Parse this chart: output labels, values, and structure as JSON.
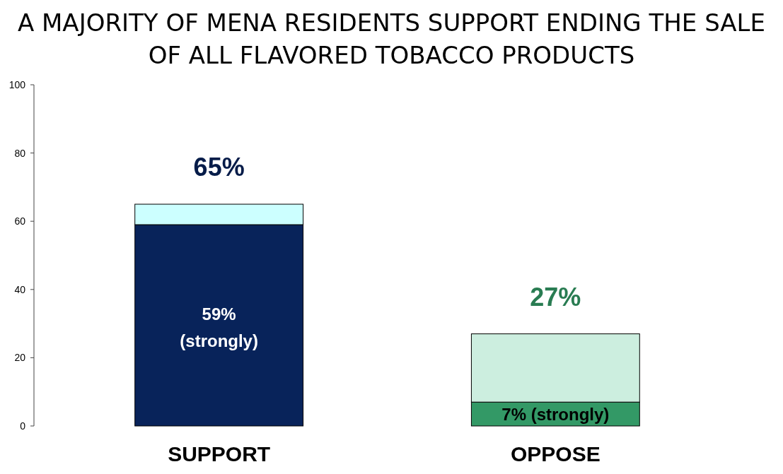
{
  "chart_data": {
    "type": "bar",
    "title": "A MAJORITY OF MENA RESIDENTS SUPPORT ENDING THE SALE OF ALL FLAVORED TOBACCO PRODUCTS",
    "categories": [
      "SUPPORT",
      "OPPOSE"
    ],
    "stacked": true,
    "series": [
      {
        "colors": [
          "#08235a",
          "#339966"
        ],
        "values": [
          59,
          7
        ],
        "value_labels": [
          "59% (strongly)",
          "7% (strongly)"
        ]
      },
      {
        "colors": [
          "#ccffff",
          "#cceedf"
        ],
        "values": [
          6,
          20
        ]
      }
    ],
    "totals": [
      "65%",
      "27%"
    ],
    "ylim": [
      0,
      100
    ],
    "yticks": [
      0,
      20,
      40,
      60,
      80,
      100
    ]
  }
}
